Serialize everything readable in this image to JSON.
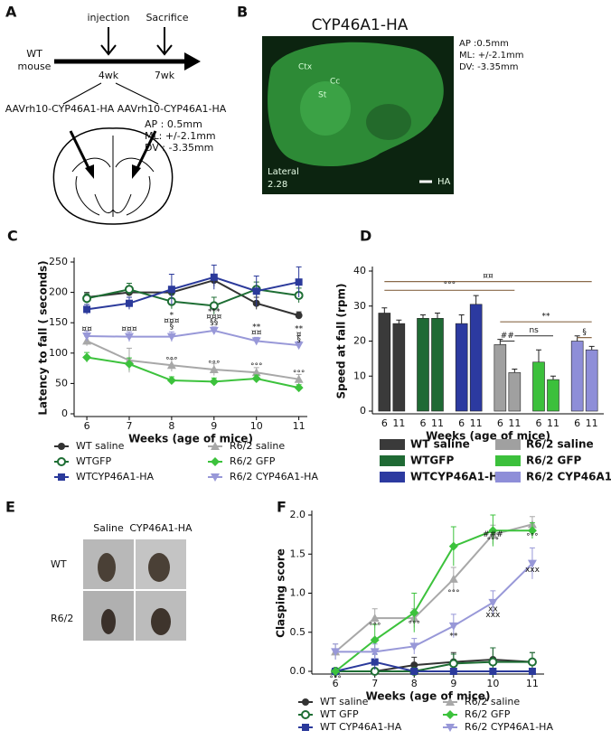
{
  "panel_a": {
    "label": "A",
    "injection": "injection",
    "sacrifice": "Sacrifice",
    "group": [
      "WT",
      "mouse"
    ],
    "time_1": "4wk",
    "time_2": "7wk",
    "vector_left": "AAVrh10-CYP46A1-HA",
    "vector_right": "AAVrh10-CYP46A1-HA",
    "coords": [
      "AP : 0.5mm",
      "ML: +/-2.1mm",
      "DV : -3.35mm"
    ]
  },
  "panel_b": {
    "label": "B",
    "title": "CYP46A1-HA",
    "coords": [
      "AP :0.5mm",
      "ML: +/-2.1mm",
      "DV: -3.35mm"
    ],
    "regions": [
      "Ctx",
      "Cc",
      "St"
    ],
    "lateral": [
      "Lateral",
      "2.28"
    ],
    "stain": "HA"
  },
  "panel_e": {
    "label": "E",
    "columns": [
      "Saline",
      "CYP46A1-HA"
    ],
    "rows": [
      "WT",
      "R6/2"
    ]
  },
  "chart_data": [
    {
      "panel": "C",
      "type": "line",
      "x": [
        6,
        7,
        8,
        9,
        10,
        11
      ],
      "xlim": [
        5.7,
        11.2
      ],
      "xticks": [
        6,
        7,
        8,
        9,
        10,
        11
      ],
      "ylim": [
        0,
        250
      ],
      "yticks": [
        0,
        50,
        100,
        150,
        200,
        250
      ],
      "xlabel": "Weeks (age of mice)",
      "ylabel": "Latency to fall ( seconds)",
      "series": [
        {
          "name": "WT saline",
          "color": "#333333",
          "marker": "dot",
          "values": [
            192,
            200,
            200,
            220,
            182,
            162
          ],
          "errors": [
            8,
            6,
            8,
            10,
            10,
            6
          ]
        },
        {
          "name": "WTGFP",
          "color": "#1e6e34",
          "marker": "circle",
          "values": [
            190,
            205,
            185,
            178,
            205,
            195
          ],
          "errors": [
            8,
            10,
            12,
            14,
            12,
            12
          ]
        },
        {
          "name": "WTCYP46A1-HA",
          "color": "#2b3a9b",
          "marker": "square",
          "values": [
            172,
            182,
            205,
            225,
            202,
            217
          ],
          "errors": [
            8,
            10,
            25,
            20,
            25,
            25
          ]
        },
        {
          "name": "R6/2 saline",
          "color": "#a8a8a8",
          "marker": "triangle",
          "values": [
            120,
            88,
            80,
            73,
            68,
            57
          ],
          "errors": [
            8,
            20,
            10,
            10,
            8,
            8
          ]
        },
        {
          "name": "R6/2 GFP",
          "color": "#3cc23c",
          "marker": "diamond",
          "values": [
            93,
            82,
            55,
            53,
            58,
            43
          ],
          "errors": [
            8,
            10,
            6,
            6,
            6,
            5
          ]
        },
        {
          "name": "R6/2 CYP46A1-HA",
          "color": "#9898d8",
          "marker": "tri-down",
          "values": [
            128,
            127,
            127,
            137,
            120,
            113
          ],
          "errors": [
            8,
            8,
            8,
            6,
            6,
            6
          ]
        }
      ],
      "annotations": [
        {
          "text": "¤¤",
          "x": 6,
          "y": 140
        },
        {
          "text": "¤¤¤",
          "x": 7,
          "y": 140
        },
        {
          "text": "*",
          "x": 8,
          "y": 162
        },
        {
          "text": "¤¤¤",
          "x": 8,
          "y": 153
        },
        {
          "text": "§",
          "x": 8,
          "y": 144
        },
        {
          "text": "***",
          "x": 9,
          "y": 168
        },
        {
          "text": "¤¤¤",
          "x": 9,
          "y": 160
        },
        {
          "text": "§§",
          "x": 9,
          "y": 151
        },
        {
          "text": "**",
          "x": 10,
          "y": 143
        },
        {
          "text": "¤¤",
          "x": 10,
          "y": 134
        },
        {
          "text": "**",
          "x": 11,
          "y": 140
        },
        {
          "text": "¤",
          "x": 11,
          "y": 131
        },
        {
          "text": "§",
          "x": 11,
          "y": 123
        },
        {
          "text": "°°°",
          "x": 8,
          "y": 88
        },
        {
          "text": "°°°",
          "x": 9,
          "y": 82
        },
        {
          "text": "°°°",
          "x": 10,
          "y": 78
        },
        {
          "text": "°°°",
          "x": 11,
          "y": 66
        }
      ]
    },
    {
      "panel": "D",
      "type": "bar",
      "categories": [
        "6",
        "11"
      ],
      "ylim": [
        0,
        40
      ],
      "yticks": [
        0,
        10,
        20,
        30,
        40
      ],
      "xlabel": "Weeks (age of mice)",
      "ylabel": "Speed at fall (rpm)",
      "series": [
        {
          "name": "WT saline",
          "color": "#3a3a3a",
          "values": [
            28,
            25
          ],
          "errors": [
            1.5,
            1
          ]
        },
        {
          "name": "WTGFP",
          "color": "#1f6a34",
          "values": [
            26.5,
            26.5
          ],
          "errors": [
            1,
            1.5
          ]
        },
        {
          "name": "WTCYP46A1-HA",
          "color": "#2c3aa0",
          "values": [
            25,
            30.5
          ],
          "errors": [
            2.5,
            2.5
          ]
        },
        {
          "name": "R6/2 saline",
          "color": "#a0a0a0",
          "values": [
            19,
            11
          ],
          "errors": [
            1.5,
            1
          ]
        },
        {
          "name": "R6/2 GFP",
          "color": "#3cc03c",
          "values": [
            14,
            9
          ],
          "errors": [
            3.5,
            1
          ]
        },
        {
          "name": "R6/2 CYP46A1-HA",
          "color": "#8e8ed8",
          "values": [
            20,
            17.5
          ],
          "errors": [
            1.5,
            1
          ]
        }
      ],
      "annotations": [
        {
          "text": "¤¤",
          "y": 37
        },
        {
          "text": "°°°",
          "y": 34.5
        },
        {
          "text": "##",
          "y": 20
        },
        {
          "text": "ns",
          "y": 21.5
        },
        {
          "text": "**",
          "y": 25.5
        },
        {
          "text": "§",
          "y": 21
        }
      ]
    },
    {
      "panel": "F",
      "type": "line",
      "x": [
        6,
        7,
        8,
        9,
        10,
        11
      ],
      "xlim": [
        5.4,
        11.3
      ],
      "xticks": [
        6,
        7,
        8,
        9,
        10,
        11
      ],
      "ylim": [
        0,
        2
      ],
      "yticks": [
        {
          "value": 0,
          "label": "0.0"
        },
        0.5,
        {
          "value": 1,
          "label": "1.0"
        },
        1.5,
        {
          "value": 2,
          "label": "2.0"
        }
      ],
      "xlabel": "Weeks (age of mice)",
      "ylabel": "Clasping score",
      "series": [
        {
          "name": "WT saline",
          "color": "#333333",
          "marker": "dot",
          "values": [
            0,
            0,
            0.08,
            0.12,
            0.15,
            0.12
          ],
          "errors": [
            0,
            0,
            0.1,
            0.12,
            0.15,
            0.12
          ]
        },
        {
          "name": "WT GFP",
          "color": "#1e6e34",
          "marker": "circle",
          "values": [
            0,
            0,
            0,
            0.1,
            0.12,
            0.12
          ],
          "errors": [
            0,
            0,
            0,
            0.12,
            0.18,
            0.12
          ]
        },
        {
          "name": "WT CYP46A1-HA",
          "color": "#2b3a9b",
          "marker": "square",
          "values": [
            0,
            0.12,
            0,
            0,
            0,
            0
          ],
          "errors": [
            0,
            0.1,
            0,
            0,
            0,
            0
          ]
        },
        {
          "name": "R6/2 saline",
          "color": "#a8a8a8",
          "marker": "triangle",
          "values": [
            0.25,
            0.68,
            0.68,
            1.18,
            1.75,
            1.88
          ],
          "errors": [
            0.1,
            0.12,
            0.12,
            0.15,
            0.12,
            0.1
          ]
        },
        {
          "name": "R6/2 GFP",
          "color": "#3cc23c",
          "marker": "diamond",
          "values": [
            0,
            0.4,
            0.75,
            1.6,
            1.8,
            1.8
          ],
          "errors": [
            0,
            0.2,
            0.25,
            0.25,
            0.2,
            0.1
          ]
        },
        {
          "name": "R6/2 CYP46A1-HA",
          "color": "#9898d8",
          "marker": "tri-down",
          "values": [
            0.25,
            0.25,
            0.32,
            0.58,
            0.88,
            1.38
          ],
          "errors": [
            0.1,
            0.1,
            0.1,
            0.15,
            0.15,
            0.2
          ]
        }
      ],
      "annotations": [
        {
          "text": "°°°",
          "x": 6,
          "y": -0.1
        },
        {
          "text": "°°°",
          "x": 7,
          "y": 0.58
        },
        {
          "text": "°°°",
          "x": 8,
          "y": 0.6
        },
        {
          "text": "°°°",
          "x": 9,
          "y": 1.0
        },
        {
          "text": "**",
          "x": 9,
          "y": 0.45
        },
        {
          "text": "###",
          "x": 10,
          "y": 1.75
        },
        {
          "text": "°°°",
          "x": 10,
          "y": 1.67
        },
        {
          "text": "xx",
          "x": 10,
          "y": 0.8
        },
        {
          "text": "xxx",
          "x": 10,
          "y": 0.72
        },
        {
          "text": "°°°",
          "x": 11,
          "y": 1.72
        },
        {
          "text": "xxx",
          "x": 11,
          "y": 1.3
        }
      ]
    }
  ]
}
